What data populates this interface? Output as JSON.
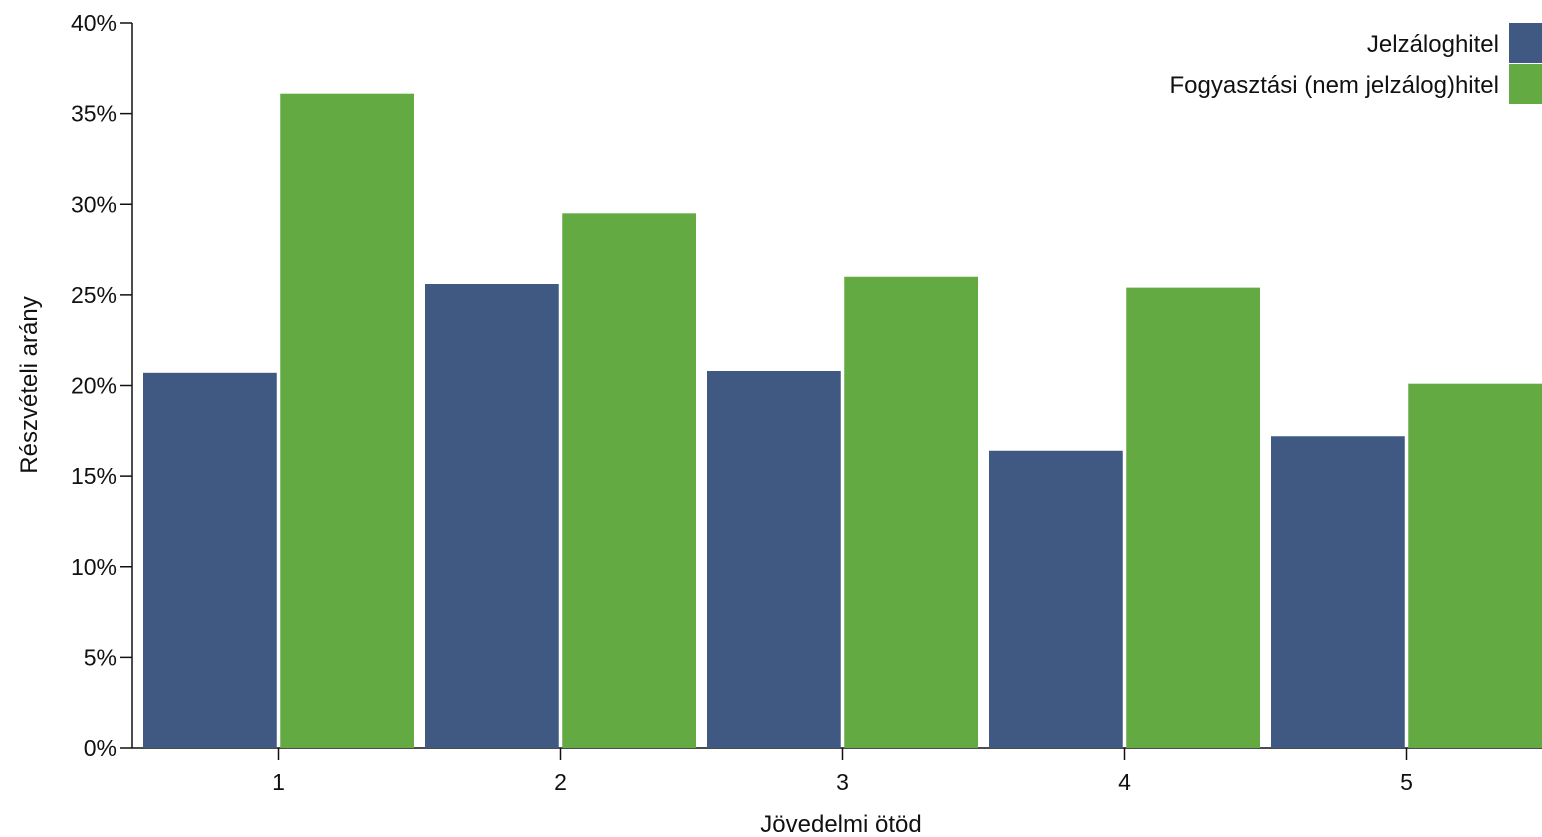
{
  "chart_data": {
    "type": "bar",
    "categories": [
      "1",
      "2",
      "3",
      "4",
      "5"
    ],
    "series": [
      {
        "name": "Jelzáloghitel",
        "color": "#3f5982",
        "values": [
          20.7,
          25.6,
          20.8,
          16.4,
          17.2
        ]
      },
      {
        "name": "Fogyasztási (nem jelzálog)hitel",
        "color": "#63aa42",
        "values": [
          36.1,
          29.5,
          26.0,
          25.4,
          20.1
        ]
      }
    ],
    "xlabel": "Jövedelmi ötöd",
    "ylabel": "Részvételi arány",
    "ylim": [
      0,
      40
    ],
    "yticks": [
      0,
      5,
      10,
      15,
      20,
      25,
      30,
      35,
      40
    ],
    "ytick_format": "percent",
    "grid": false,
    "legend": {
      "placement": "top-right"
    }
  }
}
